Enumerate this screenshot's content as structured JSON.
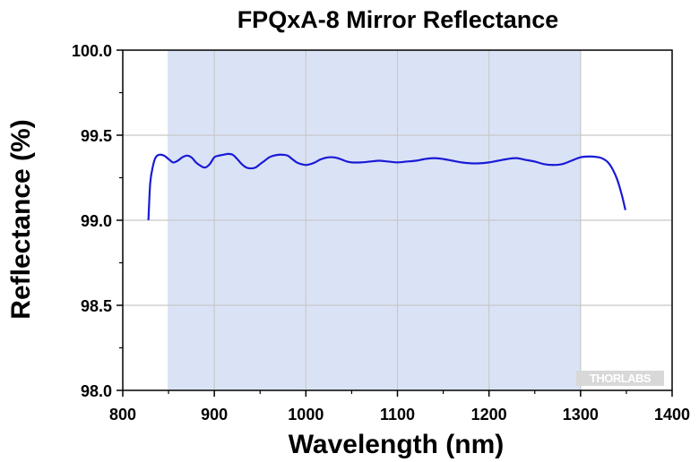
{
  "chart_data": {
    "type": "line",
    "title": "FPQxA-8 Mirror Reflectance",
    "xlabel": "Wavelength (nm)",
    "ylabel": "Reflectance (%)",
    "xlim": [
      800,
      1400
    ],
    "ylim": [
      98.0,
      100.0
    ],
    "x_ticks": [
      "800",
      "900",
      "1000",
      "1100",
      "1200",
      "1300",
      "1400"
    ],
    "y_ticks": [
      "98.0",
      "98.5",
      "99.0",
      "99.5",
      "100.0"
    ],
    "grid": true,
    "shaded_band": [
      850,
      1300
    ],
    "series": [
      {
        "color": "#1a1ad6",
        "x": [
          828,
          830,
          833,
          836,
          840,
          845,
          850,
          855,
          860,
          865,
          870,
          875,
          880,
          885,
          890,
          895,
          900,
          905,
          910,
          915,
          920,
          925,
          930,
          935,
          940,
          945,
          950,
          955,
          960,
          965,
          970,
          975,
          980,
          985,
          990,
          995,
          1000,
          1005,
          1010,
          1015,
          1020,
          1025,
          1030,
          1035,
          1040,
          1045,
          1050,
          1060,
          1070,
          1080,
          1090,
          1100,
          1110,
          1120,
          1130,
          1140,
          1150,
          1160,
          1170,
          1180,
          1190,
          1200,
          1210,
          1220,
          1230,
          1240,
          1250,
          1260,
          1270,
          1280,
          1290,
          1300,
          1310,
          1320,
          1325,
          1330,
          1335,
          1340,
          1345,
          1349
        ],
        "y": [
          99.0,
          99.22,
          99.32,
          99.37,
          99.385,
          99.38,
          99.36,
          99.34,
          99.35,
          99.37,
          99.38,
          99.37,
          99.34,
          99.32,
          99.31,
          99.33,
          99.37,
          99.38,
          99.385,
          99.39,
          99.385,
          99.36,
          99.33,
          99.31,
          99.305,
          99.31,
          99.33,
          99.35,
          99.37,
          99.38,
          99.385,
          99.385,
          99.38,
          99.36,
          99.34,
          99.33,
          99.325,
          99.33,
          99.34,
          99.355,
          99.365,
          99.37,
          99.37,
          99.365,
          99.355,
          99.345,
          99.34,
          99.34,
          99.345,
          99.35,
          99.345,
          99.34,
          99.345,
          99.35,
          99.36,
          99.365,
          99.36,
          99.35,
          99.34,
          99.335,
          99.335,
          99.34,
          99.35,
          99.36,
          99.365,
          99.355,
          99.345,
          99.33,
          99.325,
          99.33,
          99.35,
          99.37,
          99.375,
          99.37,
          99.36,
          99.34,
          99.3,
          99.24,
          99.15,
          99.06
        ]
      }
    ]
  },
  "watermark": "THORLABS"
}
